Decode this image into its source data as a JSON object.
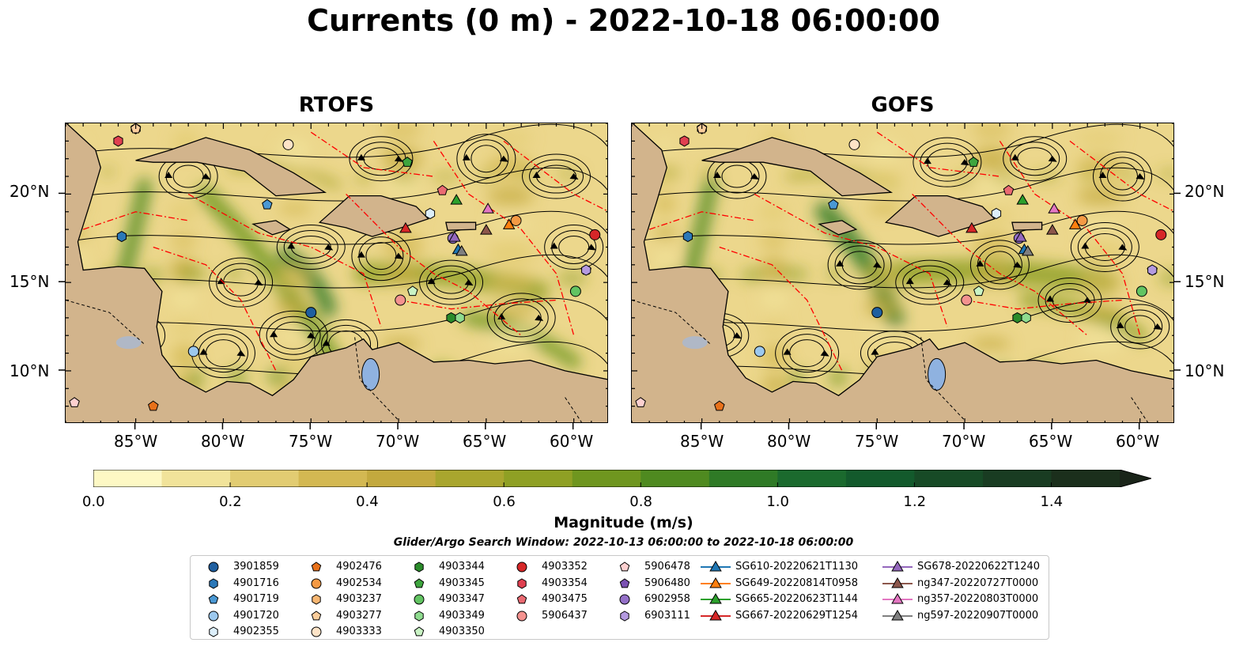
{
  "title": "Currents (0 m) - 2022-10-18 06:00:00",
  "panels": [
    {
      "title": "RTOFS"
    },
    {
      "title": "GOFS"
    }
  ],
  "axes": {
    "x_ticks": [
      "85°W",
      "80°W",
      "75°W",
      "70°W",
      "65°W",
      "60°W"
    ],
    "y_ticks": [
      "20°N",
      "15°N",
      "10°N"
    ]
  },
  "chart_data": {
    "type": "heatmap",
    "variable": "current magnitude",
    "colorbar": {
      "label": "Magnitude (m/s)",
      "ticks": [
        "0.0",
        "0.2",
        "0.4",
        "0.6",
        "0.8",
        "1.0",
        "1.2",
        "1.4"
      ],
      "range": [
        0.0,
        1.5
      ],
      "extend": "max",
      "colors": [
        "#fdf8c4",
        "#f1e39a",
        "#e2cc72",
        "#d3b852",
        "#c3a93e",
        "#a9a62e",
        "#8fa024",
        "#6f961f",
        "#4f8a20",
        "#2f7a26",
        "#1b6a2e",
        "#135a2c",
        "#174a26",
        "#193c22",
        "#1b2f1c",
        "#1a2419"
      ]
    },
    "lon_range": [
      -89,
      -58
    ],
    "lat_range": [
      7,
      24
    ]
  },
  "colors": {
    "land": "#d2b48c",
    "eez_line": "#ff0000",
    "streamline": "#000000",
    "lake": "#8fb2e0"
  },
  "search_window": "Glider/Argo Search Window: 2022-10-13 06:00:00 to 2022-10-18 06:00:00",
  "legend": [
    {
      "label": "3901859",
      "marker": "circle",
      "color": "#1f5fa0"
    },
    {
      "label": "4901716",
      "marker": "hexagon",
      "color": "#2b78b8"
    },
    {
      "label": "4901719",
      "marker": "pentagon",
      "color": "#4a98d4"
    },
    {
      "label": "4901720",
      "marker": "circle",
      "color": "#9cc8ee"
    },
    {
      "label": "4902355",
      "marker": "hexagon",
      "color": "#dceefa"
    },
    {
      "label": "4902476",
      "marker": "pentagon",
      "color": "#e8711a"
    },
    {
      "label": "4902534",
      "marker": "circle",
      "color": "#f59a45"
    },
    {
      "label": "4903237",
      "marker": "hexagon",
      "color": "#f8b772"
    },
    {
      "label": "4903277",
      "marker": "pentagon",
      "color": "#fbcd9b"
    },
    {
      "label": "4903333",
      "marker": "circle",
      "color": "#fde3c7"
    },
    {
      "label": "4903344",
      "marker": "hexagon",
      "color": "#2a8b2a"
    },
    {
      "label": "4903345",
      "marker": "pentagon",
      "color": "#3ea53e"
    },
    {
      "label": "4903347",
      "marker": "circle",
      "color": "#62c462"
    },
    {
      "label": "4903349",
      "marker": "hexagon",
      "color": "#8fdc8f"
    },
    {
      "label": "4903350",
      "marker": "pentagon",
      "color": "#c9f3c4"
    },
    {
      "label": "4903352",
      "marker": "circle",
      "color": "#d62728"
    },
    {
      "label": "4903354",
      "marker": "hexagon",
      "color": "#e04050"
    },
    {
      "label": "4903475",
      "marker": "pentagon",
      "color": "#ea6a72"
    },
    {
      "label": "5906437",
      "marker": "circle",
      "color": "#f4928f"
    },
    {
      "label": "5906478",
      "marker": "pentagon",
      "color": "#fdd0d0"
    },
    {
      "label": "5906480",
      "marker": "pentagon",
      "color": "#7b52b2"
    },
    {
      "label": "6902958",
      "marker": "circle",
      "color": "#9470c8"
    },
    {
      "label": "6903111",
      "marker": "hexagon",
      "color": "#b49ae0"
    },
    {
      "label": "SG610-20220621T1130",
      "marker": "triangle",
      "color": "#1f77b4"
    },
    {
      "label": "SG649-20220814T0958",
      "marker": "triangle",
      "color": "#ff7f0e"
    },
    {
      "label": "SG665-20220623T1144",
      "marker": "triangle",
      "color": "#2ca02c"
    },
    {
      "label": "SG667-20220629T1254",
      "marker": "triangle",
      "color": "#d62728"
    },
    {
      "label": "SG678-20220622T1240",
      "marker": "triangle",
      "color": "#9467bd"
    },
    {
      "label": "ng347-20220727T0000",
      "marker": "triangle",
      "color": "#8c564b"
    },
    {
      "label": "ng357-20220803T0000",
      "marker": "triangle",
      "color": "#e377c2"
    },
    {
      "label": "ng597-20220907T0000",
      "marker": "triangle",
      "color": "#7f7f7f"
    }
  ],
  "stations": [
    {
      "id": "3901859",
      "lon": -75.0,
      "lat": 13.3
    },
    {
      "id": "4901716",
      "lon": -85.8,
      "lat": 17.6
    },
    {
      "id": "4901719",
      "lon": -77.5,
      "lat": 19.4
    },
    {
      "id": "4901720",
      "lon": -81.7,
      "lat": 11.1
    },
    {
      "id": "4902355",
      "lon": -68.2,
      "lat": 18.9
    },
    {
      "id": "4902476",
      "lon": -84.0,
      "lat": 8.0
    },
    {
      "id": "4902534",
      "lon": -63.3,
      "lat": 18.5
    },
    {
      "id": "4903237",
      "lon": -85.0,
      "lat": 23.7
    },
    {
      "id": "4903277",
      "lon": -85.0,
      "lat": 23.7
    },
    {
      "id": "4903333",
      "lon": -76.3,
      "lat": 22.8
    },
    {
      "id": "4903344",
      "lon": -67.0,
      "lat": 13.0
    },
    {
      "id": "4903345",
      "lon": -69.5,
      "lat": 21.8
    },
    {
      "id": "4903347",
      "lon": -59.9,
      "lat": 14.5
    },
    {
      "id": "4903349",
      "lon": -66.5,
      "lat": 13.0
    },
    {
      "id": "4903350",
      "lon": -69.2,
      "lat": 14.5
    },
    {
      "id": "4903352",
      "lon": -58.8,
      "lat": 17.7
    },
    {
      "id": "4903354",
      "lon": -86.0,
      "lat": 23.0
    },
    {
      "id": "4903475",
      "lon": -67.5,
      "lat": 20.2
    },
    {
      "id": "5906437",
      "lon": -69.9,
      "lat": 14.0
    },
    {
      "id": "5906478",
      "lon": -88.5,
      "lat": 8.2
    },
    {
      "id": "5906480",
      "lon": -59.3,
      "lat": 15.7
    },
    {
      "id": "6902958",
      "lon": -66.9,
      "lat": 17.5
    },
    {
      "id": "6903111",
      "lon": -59.3,
      "lat": 15.7
    }
  ],
  "gliders": [
    {
      "id": "SG610-20220621T1130",
      "lon": -66.6,
      "lat": 16.9
    },
    {
      "id": "SG649-20220814T0958",
      "lon": -63.7,
      "lat": 18.3
    },
    {
      "id": "SG665-20220623T1144",
      "lon": -66.7,
      "lat": 19.7
    },
    {
      "id": "SG667-20220629T1254",
      "lon": -69.6,
      "lat": 18.1
    },
    {
      "id": "SG678-20220622T1240",
      "lon": -66.8,
      "lat": 17.6
    },
    {
      "id": "ng347-20220727T0000",
      "lon": -65.0,
      "lat": 18.0
    },
    {
      "id": "ng357-20220803T0000",
      "lon": -64.9,
      "lat": 19.2
    },
    {
      "id": "ng597-20220907T0000",
      "lon": -66.4,
      "lat": 16.8
    }
  ]
}
